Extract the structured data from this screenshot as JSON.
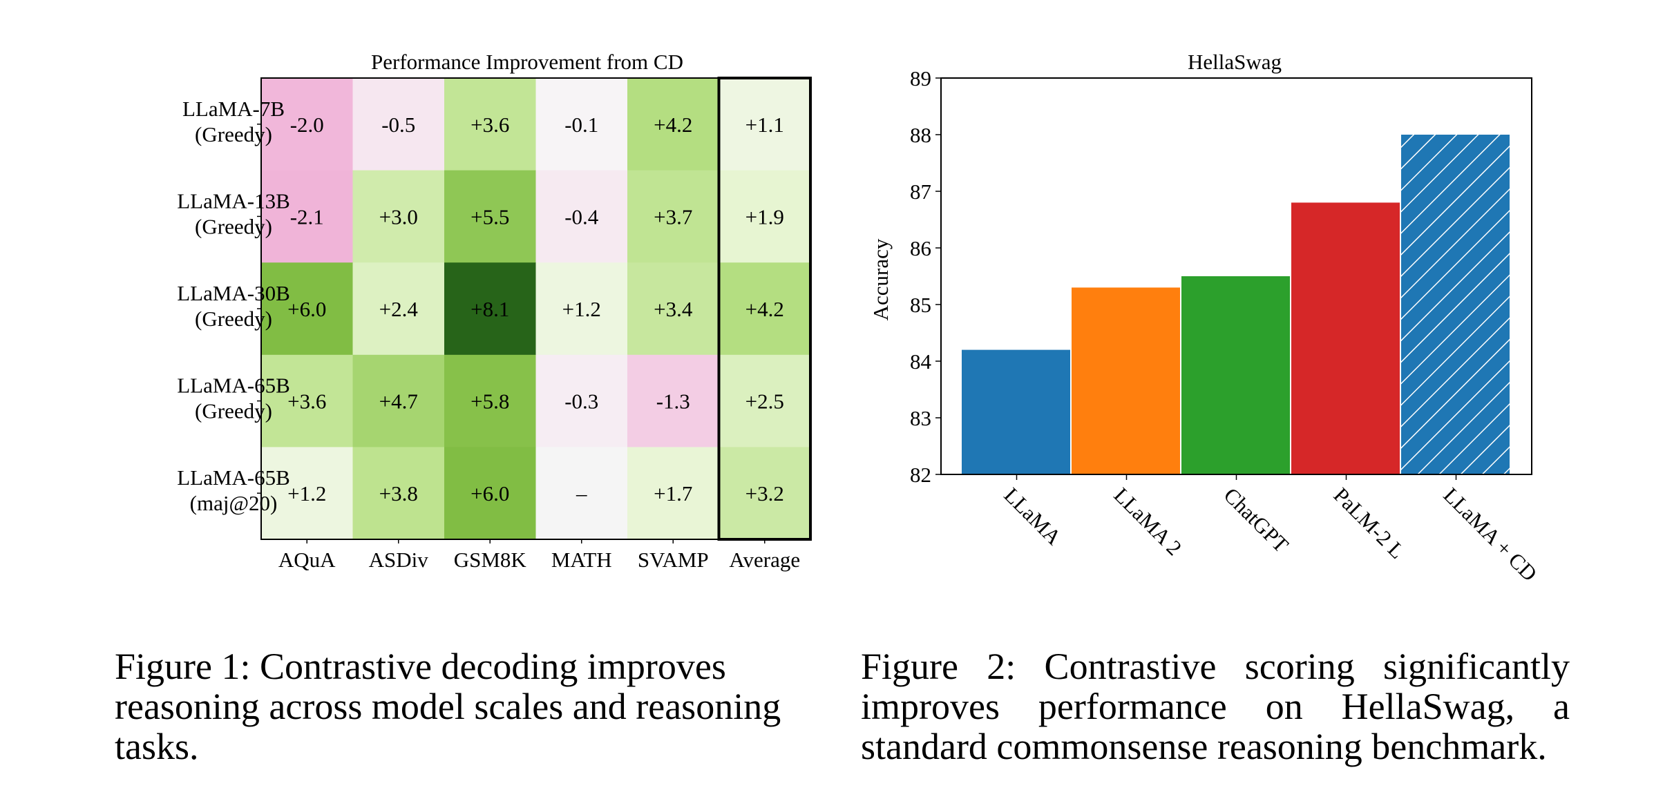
{
  "figure1": {
    "caption": "Figure 1: Contrastive decoding improves reasoning across model scales and reasoning tasks.",
    "chart_data": {
      "type": "heatmap",
      "title": "Performance Improvement from CD",
      "columns": [
        "AQuA",
        "ASDiv",
        "GSM8K",
        "MATH",
        "SVAMP",
        "Average"
      ],
      "rows": [
        {
          "line1": "LLaMA-7B",
          "line2": "(Greedy)"
        },
        {
          "line1": "LLaMA-13B",
          "line2": "(Greedy)"
        },
        {
          "line1": "LLaMA-30B",
          "line2": "(Greedy)"
        },
        {
          "line1": "LLaMA-65B",
          "line2": "(Greedy)"
        },
        {
          "line1": "LLaMA-65B",
          "line2": "(maj@20)"
        }
      ],
      "values": [
        [
          -2.0,
          -0.5,
          3.6,
          -0.1,
          4.2,
          1.1
        ],
        [
          -2.1,
          3.0,
          5.5,
          -0.4,
          3.7,
          1.9
        ],
        [
          6.0,
          2.4,
          8.1,
          1.2,
          3.4,
          4.2
        ],
        [
          3.6,
          4.7,
          5.8,
          -0.3,
          -1.3,
          2.5
        ],
        [
          1.2,
          3.8,
          6.0,
          null,
          1.7,
          3.2
        ]
      ],
      "labels": [
        [
          "-2.0",
          "-0.5",
          "+3.6",
          "-0.1",
          "+4.2",
          "+1.1"
        ],
        [
          "-2.1",
          "+3.0",
          "+5.5",
          "-0.4",
          "+3.7",
          "+1.9"
        ],
        [
          "+6.0",
          "+2.4",
          "+8.1",
          "+1.2",
          "+3.4",
          "+4.2"
        ],
        [
          "+3.6",
          "+4.7",
          "+5.8",
          "-0.3",
          "-1.3",
          "+2.5"
        ],
        [
          "+1.2",
          "+3.8",
          "+6.0",
          "–",
          "+1.7",
          "+3.2"
        ]
      ],
      "colormap": "PiYG",
      "highlighted_column": "Average"
    }
  },
  "figure2": {
    "caption": "Figure 2: Contrastive scoring significantly improves performance on HellaSwag, a standard commonsense reasoning benchmark.",
    "chart_data": {
      "type": "bar",
      "title": "HellaSwag",
      "ylabel": "Accuracy",
      "xlabel": "",
      "categories": [
        "LLaMA",
        "LLaMA 2",
        "ChatGPT",
        "PaLM-2 L",
        "LLaMA + CD"
      ],
      "values": [
        84.2,
        85.3,
        85.5,
        86.8,
        88.0
      ],
      "colors": [
        "#1f77b4",
        "#ff7f0e",
        "#2ca02c",
        "#d62728",
        "#1f77b4"
      ],
      "hatched": [
        false,
        false,
        false,
        false,
        true
      ],
      "ylim": [
        82,
        89
      ],
      "yticks": [
        "82",
        "83",
        "84",
        "85",
        "86",
        "87",
        "88",
        "89"
      ],
      "grid": false
    }
  }
}
